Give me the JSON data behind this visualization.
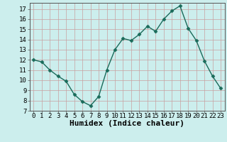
{
  "x": [
    0,
    1,
    2,
    3,
    4,
    5,
    6,
    7,
    8,
    9,
    10,
    11,
    12,
    13,
    14,
    15,
    16,
    17,
    18,
    19,
    20,
    21,
    22,
    23
  ],
  "y": [
    12,
    11.8,
    11,
    10.4,
    9.9,
    8.6,
    7.9,
    7.5,
    8.4,
    11,
    13,
    14.1,
    13.9,
    14.5,
    15.3,
    14.8,
    16,
    16.8,
    17.3,
    15.1,
    13.9,
    11.9,
    10.4,
    9.2
  ],
  "line_color": "#1a6b5a",
  "marker": "D",
  "marker_size": 2.5,
  "bg_color": "#cceeed",
  "grid_color": "#c9a0a0",
  "xlabel": "Humidex (Indice chaleur)",
  "xlabel_fontsize": 8,
  "tick_fontsize": 6.5,
  "xlim": [
    -0.5,
    23.5
  ],
  "ylim": [
    7,
    17.6
  ],
  "yticks": [
    7,
    8,
    9,
    10,
    11,
    12,
    13,
    14,
    15,
    16,
    17
  ],
  "xticks": [
    0,
    1,
    2,
    3,
    4,
    5,
    6,
    7,
    8,
    9,
    10,
    11,
    12,
    13,
    14,
    15,
    16,
    17,
    18,
    19,
    20,
    21,
    22,
    23
  ]
}
